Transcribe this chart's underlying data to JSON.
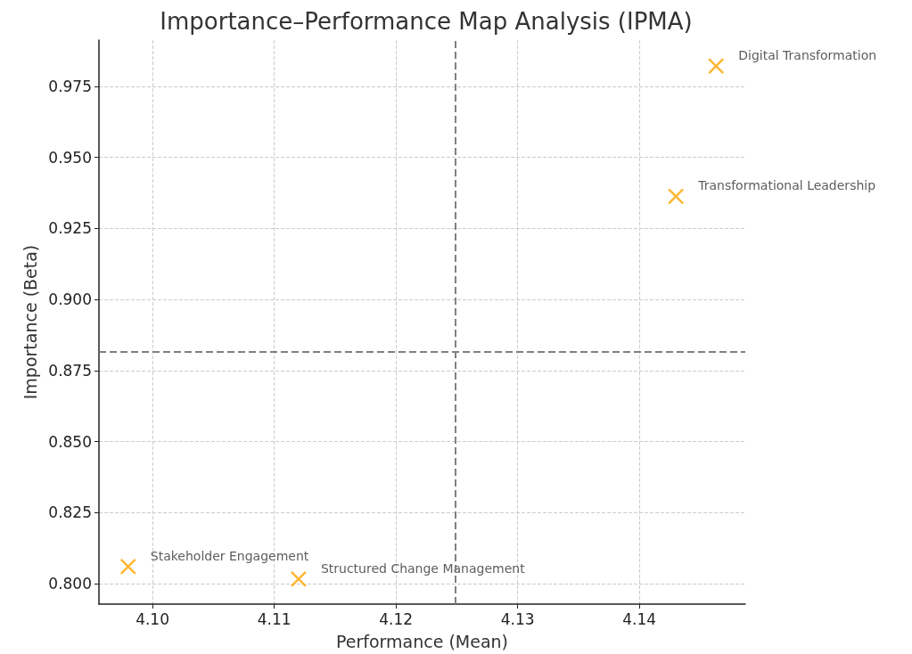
{
  "chart_data": {
    "type": "scatter",
    "title": "Importance–Performance Map Analysis (IPMA)",
    "xlabel": "Performance (Mean)",
    "ylabel": "Importance (Beta)",
    "x": [
      4.1463,
      4.143,
      4.098,
      4.112
    ],
    "values": [
      0.9822,
      0.9363,
      0.806,
      0.8016
    ],
    "color": "#ffa500",
    "marker": "cross",
    "xlim": [
      4.0956,
      4.1487
    ],
    "xticks": [
      {
        "value": 4.1,
        "label": "4.10"
      },
      {
        "value": 4.11,
        "label": "4.11"
      },
      {
        "value": 4.12,
        "label": "4.12"
      },
      {
        "value": 4.13,
        "label": "4.13"
      },
      {
        "value": 4.14,
        "label": "4.14"
      }
    ],
    "ylim": [
      0.7928,
      0.9913
    ],
    "yticks": [
      {
        "value": 0.8,
        "label": "0.800"
      },
      {
        "value": 0.825,
        "label": "0.825"
      },
      {
        "value": 0.85,
        "label": "0.850"
      },
      {
        "value": 0.875,
        "label": "0.875"
      },
      {
        "value": 0.9,
        "label": "0.900"
      },
      {
        "value": 0.925,
        "label": "0.925"
      },
      {
        "value": 0.95,
        "label": "0.950"
      },
      {
        "value": 0.975,
        "label": "0.975"
      }
    ],
    "grid": true,
    "ref_lines": [
      {
        "axis": "x",
        "value": 4.1249,
        "color": "#808080",
        "line_style": "dashed"
      },
      {
        "axis": "y",
        "value": 0.8816,
        "color": "#808080",
        "line_style": "dashed"
      }
    ],
    "annotations": [
      {
        "text": "Digital Transformation",
        "x": 4.1463,
        "y": 0.9822
      },
      {
        "text": "Transformational Leadership",
        "x": 4.143,
        "y": 0.9363
      },
      {
        "text": "Stakeholder Engagement",
        "x": 4.098,
        "y": 0.806
      },
      {
        "text": "Structured Change Management",
        "x": 4.112,
        "y": 0.8016
      }
    ]
  }
}
